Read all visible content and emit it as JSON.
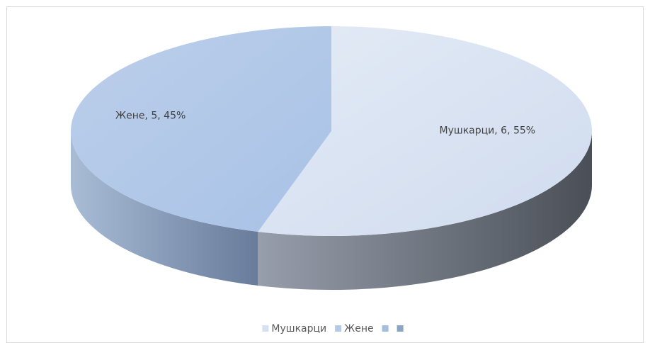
{
  "chart_data": {
    "type": "pie3d",
    "categories": [
      "Мушкарци",
      "Жене",
      null,
      null
    ],
    "values": [
      6,
      5,
      null,
      null
    ],
    "value_labels": [
      "Мушкарци, 6, 55%",
      "Жене, 5, 45%",
      null,
      null
    ],
    "colors": [
      "#d6e0f1",
      "#b3cae9",
      "#a7bddd",
      "#8ca4c6"
    ],
    "legend": "bottom"
  }
}
